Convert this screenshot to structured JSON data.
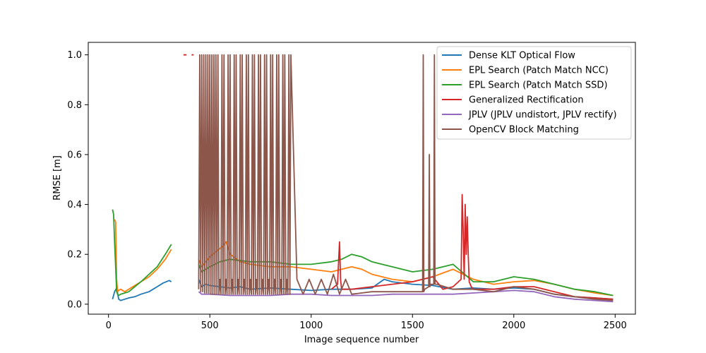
{
  "chart_data": {
    "type": "line",
    "title": "",
    "xlabel": "Image sequence number",
    "ylabel": "RMSE [m]",
    "xlim": [
      -100,
      2600
    ],
    "ylim": [
      -0.04,
      1.05
    ],
    "xticks": [
      0,
      500,
      1000,
      1500,
      2000,
      2500
    ],
    "yticks": [
      0.0,
      0.2,
      0.4,
      0.6,
      0.8,
      1.0
    ],
    "grid": false,
    "legend_position": "top-right",
    "series": [
      {
        "name": "Dense KLT Optical Flow",
        "color": "#1f77b4",
        "x": [
          20,
          30,
          40,
          50,
          60,
          80,
          100,
          130,
          160,
          200,
          240,
          270,
          300,
          310,
          null,
          445,
          460,
          480,
          500,
          550,
          600,
          650,
          700,
          800,
          900,
          1000,
          1100,
          1200,
          1300,
          1360,
          1400,
          1500,
          1600,
          1700,
          1800,
          1900,
          2000,
          2100,
          2200,
          2300,
          2400,
          2490
        ],
        "y": [
          0.02,
          0.05,
          0.065,
          0.02,
          0.015,
          0.02,
          0.025,
          0.03,
          0.04,
          0.05,
          0.07,
          0.085,
          0.095,
          0.09,
          null,
          0.1,
          0.07,
          0.08,
          0.075,
          0.07,
          0.065,
          0.07,
          0.06,
          0.065,
          0.06,
          0.055,
          0.06,
          0.06,
          0.065,
          0.1,
          0.09,
          0.08,
          0.075,
          0.06,
          0.065,
          0.06,
          0.065,
          0.06,
          0.04,
          0.03,
          0.025,
          0.02
        ]
      },
      {
        "name": "EPL Search (Patch Match NCC)",
        "color": "#ff7f0e",
        "x": [
          30,
          35,
          40,
          45,
          50,
          60,
          80,
          100,
          130,
          160,
          200,
          240,
          280,
          310,
          null,
          445,
          460,
          480,
          500,
          530,
          560,
          580,
          600,
          650,
          700,
          800,
          900,
          1000,
          1100,
          1150,
          1200,
          1250,
          1300,
          1400,
          1500,
          1600,
          1700,
          1800,
          1900,
          2000,
          2100,
          2200,
          2300,
          2400,
          2490
        ],
        "y": [
          0.34,
          0.33,
          0.1,
          0.05,
          0.055,
          0.06,
          0.05,
          0.06,
          0.075,
          0.09,
          0.11,
          0.14,
          0.18,
          0.22,
          null,
          0.18,
          0.15,
          0.17,
          0.19,
          0.21,
          0.23,
          0.25,
          0.2,
          0.17,
          0.16,
          0.15,
          0.15,
          0.14,
          0.13,
          0.14,
          0.15,
          0.14,
          0.12,
          0.1,
          0.09,
          0.11,
          0.14,
          0.1,
          0.08,
          0.09,
          0.095,
          0.08,
          0.06,
          0.045,
          0.035
        ]
      },
      {
        "name": "EPL Search (Patch Match SSD)",
        "color": "#2ca02c",
        "x": [
          20,
          25,
          30,
          35,
          40,
          45,
          50,
          60,
          80,
          100,
          130,
          160,
          200,
          240,
          280,
          310,
          null,
          445,
          460,
          500,
          550,
          600,
          700,
          800,
          900,
          1000,
          1100,
          1150,
          1200,
          1250,
          1300,
          1350,
          1400,
          1500,
          1600,
          1700,
          1800,
          1900,
          2000,
          2100,
          2200,
          2300,
          2400,
          2490
        ],
        "y": [
          0.38,
          0.36,
          0.25,
          0.15,
          0.05,
          0.04,
          0.035,
          0.04,
          0.045,
          0.05,
          0.07,
          0.09,
          0.12,
          0.15,
          0.2,
          0.24,
          null,
          0.16,
          0.13,
          0.15,
          0.17,
          0.18,
          0.17,
          0.17,
          0.16,
          0.16,
          0.17,
          0.18,
          0.2,
          0.19,
          0.17,
          0.16,
          0.15,
          0.13,
          0.14,
          0.16,
          0.09,
          0.09,
          0.11,
          0.1,
          0.08,
          0.06,
          0.05,
          0.035
        ]
      },
      {
        "name": "Generalized Rectification",
        "color": "#d62728",
        "x": [
          370,
          385,
          null,
          410,
          420,
          null,
          1100,
          1130,
          1140,
          1145,
          1150,
          1200,
          1300,
          1400,
          1500,
          1550,
          1600,
          1650,
          1700,
          1740,
          1745,
          1750,
          1755,
          1760,
          1765,
          1770,
          1775,
          1780,
          1790,
          1800,
          1900,
          2000,
          2100,
          2200,
          2300,
          2400,
          2490
        ],
        "y": [
          1.0,
          1.0,
          null,
          1.0,
          1.0,
          null,
          0.06,
          0.08,
          0.25,
          0.1,
          0.06,
          0.06,
          0.07,
          0.08,
          0.09,
          0.1,
          0.11,
          0.06,
          0.07,
          0.1,
          0.44,
          0.3,
          0.1,
          0.4,
          0.2,
          0.35,
          0.2,
          0.09,
          0.07,
          0.06,
          0.06,
          0.07,
          0.07,
          0.05,
          0.03,
          0.025,
          0.02
        ]
      },
      {
        "name": "JPLV (JPLV undistort, JPLV rectify)",
        "color": "#9467bd",
        "x": [
          445,
          460,
          500,
          600,
          700,
          800,
          900,
          1000,
          1100,
          1200,
          1300,
          1400,
          1500,
          1600,
          1700,
          1800,
          1900,
          2000,
          2100,
          2200,
          2300,
          2400,
          2490
        ],
        "y": [
          0.05,
          0.04,
          0.04,
          0.035,
          0.035,
          0.035,
          0.04,
          0.04,
          0.035,
          0.035,
          0.035,
          0.04,
          0.04,
          0.04,
          0.04,
          0.045,
          0.05,
          0.055,
          0.05,
          0.03,
          0.02,
          0.015,
          0.01
        ]
      },
      {
        "name": "OpenCV Block Matching",
        "color": "#8c564b",
        "x": [
          445,
          450,
          455,
          460,
          465,
          470,
          475,
          480,
          485,
          490,
          495,
          500,
          505,
          510,
          515,
          520,
          525,
          530,
          535,
          540,
          545,
          550,
          555,
          560,
          565,
          570,
          575,
          580,
          585,
          590,
          595,
          600,
          605,
          610,
          615,
          620,
          625,
          630,
          635,
          640,
          645,
          650,
          655,
          660,
          665,
          670,
          675,
          680,
          685,
          690,
          695,
          700,
          705,
          710,
          715,
          720,
          725,
          730,
          735,
          740,
          745,
          750,
          755,
          760,
          765,
          770,
          775,
          780,
          785,
          790,
          795,
          800,
          805,
          810,
          815,
          820,
          825,
          830,
          835,
          840,
          845,
          850,
          855,
          860,
          865,
          870,
          875,
          880,
          885,
          890,
          895,
          900,
          930,
          960,
          990,
          1020,
          1050,
          1080,
          1110,
          1140,
          1170,
          1200,
          1300,
          1400,
          1500,
          1550,
          1553,
          1556,
          1560,
          1580,
          1583,
          1586,
          1590,
          1605,
          1608,
          1611,
          1620,
          1700,
          1800,
          1900,
          2000,
          2100,
          2200,
          2300,
          2400,
          2490
        ],
        "y": [
          0.06,
          1.0,
          0.05,
          1.0,
          0.05,
          1.0,
          0.045,
          1.0,
          0.045,
          1.0,
          0.045,
          1.0,
          0.04,
          1.0,
          0.04,
          1.0,
          0.04,
          1.0,
          0.04,
          1.0,
          0.04,
          0.1,
          0.04,
          1.0,
          0.04,
          1.0,
          0.04,
          0.1,
          0.04,
          1.0,
          0.04,
          1.0,
          0.04,
          0.1,
          0.04,
          1.0,
          0.04,
          1.0,
          0.04,
          0.1,
          0.04,
          1.0,
          0.04,
          1.0,
          0.04,
          0.1,
          0.04,
          1.0,
          0.04,
          1.0,
          0.04,
          0.1,
          0.04,
          1.0,
          0.04,
          1.0,
          0.04,
          0.1,
          0.04,
          1.0,
          0.04,
          1.0,
          0.04,
          0.1,
          0.04,
          1.0,
          0.04,
          1.0,
          0.04,
          0.1,
          0.04,
          1.0,
          0.04,
          1.0,
          0.04,
          0.1,
          0.04,
          1.0,
          0.04,
          1.0,
          0.04,
          0.1,
          0.04,
          1.0,
          0.04,
          1.0,
          0.04,
          0.1,
          0.04,
          1.0,
          0.04,
          1.0,
          0.1,
          0.04,
          0.1,
          0.04,
          0.1,
          0.04,
          0.12,
          0.04,
          0.1,
          0.04,
          0.05,
          0.05,
          0.05,
          0.05,
          1.0,
          0.05,
          0.06,
          0.07,
          0.6,
          0.07,
          0.08,
          0.08,
          1.0,
          0.08,
          0.08,
          0.06,
          0.06,
          0.05,
          0.07,
          0.06,
          0.04,
          0.03,
          0.02,
          0.015
        ]
      }
    ]
  }
}
